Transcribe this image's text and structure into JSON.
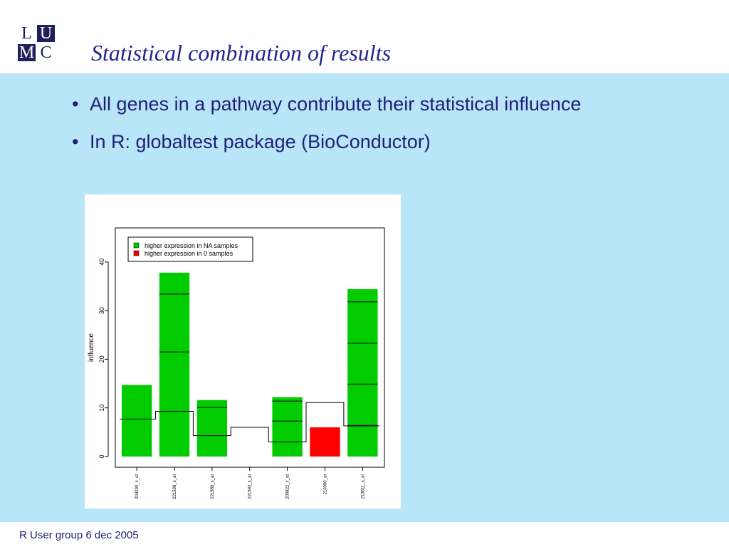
{
  "logo": {
    "cells": [
      {
        "letter": "L",
        "style": "light"
      },
      {
        "letter": "U",
        "style": "dark"
      },
      {
        "letter": "M",
        "style": "dark"
      },
      {
        "letter": "C",
        "style": "light"
      }
    ]
  },
  "slide": {
    "title": "Statistical combination of results",
    "bullet_symbol": "•",
    "bullets": [
      "All genes in a pathway contribute their statistical influence",
      "In R: globaltest package (BioConductor)"
    ],
    "footer": "R User group 6 dec 2005"
  },
  "colors": {
    "content_bg": "#b8e6f8",
    "title": "#23238e",
    "text": "#1f1f78",
    "logo_dark": "#1f1f5c",
    "bar_na": "#00cc00",
    "bar_0": "#ff0000"
  },
  "chart_data": {
    "type": "bar",
    "title": "",
    "xlabel": "",
    "ylabel": "influence",
    "ylim": [
      -2.2,
      47
    ],
    "yticks": [
      0,
      10,
      20,
      30,
      40
    ],
    "categories": [
      "204290_s_at",
      "221598_s_at",
      "221589_s_at",
      "221592_s_at",
      "200822_x_at",
      "210050_at",
      "213611_s_at"
    ],
    "values": [
      14.7,
      37.8,
      11.6,
      0,
      12.2,
      6.0,
      34.4
    ],
    "bar_groups": [
      "NA",
      "NA",
      "NA",
      "NA",
      "NA",
      "0",
      "NA"
    ],
    "segments": [
      [],
      [
        33.4,
        21.5
      ],
      [
        10.1
      ],
      [],
      [
        11.4,
        7.3,
        3.0
      ],
      [],
      [
        31.8,
        23.3,
        14.9,
        6.4
      ]
    ],
    "expected": [
      7.7,
      9.3,
      4.3,
      6.0,
      3.0,
      11.1,
      6.3
    ],
    "legend": {
      "position": "top-left",
      "entries": [
        {
          "label": "higher expression in NA samples",
          "group": "NA",
          "color": "#00cc00"
        },
        {
          "label": "higher expression in 0 samples",
          "group": "0",
          "color": "#ff0000"
        }
      ]
    },
    "grid": false
  }
}
